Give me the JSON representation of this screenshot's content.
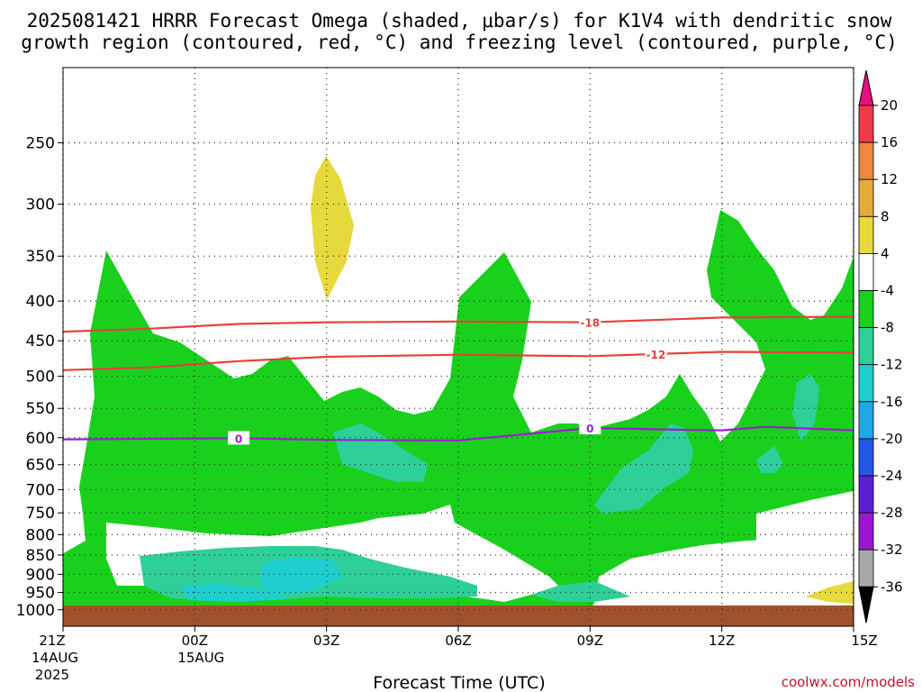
{
  "title_line1": "2025081421 HRRR Forecast Omega (shaded, μbar/s) for K1V4 with dendritic snow",
  "title_line2": "growth region (contoured, red, °C) and freezing level (contoured, purple, °C)",
  "credit": "coolwx.com/models",
  "chart_data": {
    "type": "area",
    "xlabel": "Forecast Time (UTC)",
    "x_ticks": [
      {
        "label": "21Z",
        "sub1": "14AUG",
        "sub2": "2025",
        "hour": 0
      },
      {
        "label": "00Z",
        "sub1": "15AUG",
        "sub2": "",
        "hour": 3
      },
      {
        "label": "03Z",
        "sub1": "",
        "sub2": "",
        "hour": 6
      },
      {
        "label": "06Z",
        "sub1": "",
        "sub2": "",
        "hour": 9
      },
      {
        "label": "09Z",
        "sub1": "",
        "sub2": "",
        "hour": 12
      },
      {
        "label": "12Z",
        "sub1": "",
        "sub2": "",
        "hour": 15
      },
      {
        "label": "15Z",
        "sub1": "",
        "sub2": "",
        "hour": 18
      }
    ],
    "xlim": [
      0,
      18
    ],
    "ylim": [
      1050,
      200
    ],
    "y_scale": "log",
    "y_ticks": [
      250,
      300,
      350,
      400,
      450,
      500,
      550,
      600,
      650,
      700,
      750,
      800,
      850,
      900,
      950,
      1000
    ],
    "grid": true,
    "ground_pressure_top": 981,
    "contours": [
      {
        "label": "-18",
        "color": "#e8403a",
        "points": [
          [
            0,
            438
          ],
          [
            2,
            434
          ],
          [
            4,
            428
          ],
          [
            6,
            426
          ],
          [
            9,
            425
          ],
          [
            12,
            426
          ],
          [
            15,
            420
          ],
          [
            18,
            419
          ]
        ]
      },
      {
        "label": "-12",
        "color": "#e8403a",
        "points": [
          [
            0,
            491
          ],
          [
            2,
            487
          ],
          [
            4,
            478
          ],
          [
            6,
            472
          ],
          [
            9,
            469
          ],
          [
            12,
            471
          ],
          [
            15,
            465
          ],
          [
            18,
            466
          ]
        ]
      },
      {
        "label": "0",
        "color": "#9b1fcf",
        "points": [
          [
            0,
            603
          ],
          [
            2,
            602
          ],
          [
            4,
            601
          ],
          [
            6,
            604
          ],
          [
            9,
            605
          ],
          [
            12,
            583
          ],
          [
            14,
            586
          ],
          [
            15,
            587
          ],
          [
            16,
            581
          ],
          [
            18,
            587
          ]
        ]
      }
    ],
    "colorbar": {
      "levels": [
        "20",
        "16",
        "12",
        "8",
        "4",
        "-4",
        "-8",
        "-12",
        "-16",
        "-20",
        "-24",
        "-28",
        "-32",
        "-36"
      ],
      "colors": [
        "#ee3b4a",
        "#f0863a",
        "#e5ab3a",
        "#e6d93b",
        "#ffffff",
        "#19d11d",
        "#2fcf9a",
        "#1fcfcf",
        "#21a6e8",
        "#2158e6",
        "#5a1fd0",
        "#9b17cf",
        "#a8a8a8"
      ],
      "top_arrow_color": "#e6117e",
      "bottom_arrow_color": "#000000"
    }
  }
}
